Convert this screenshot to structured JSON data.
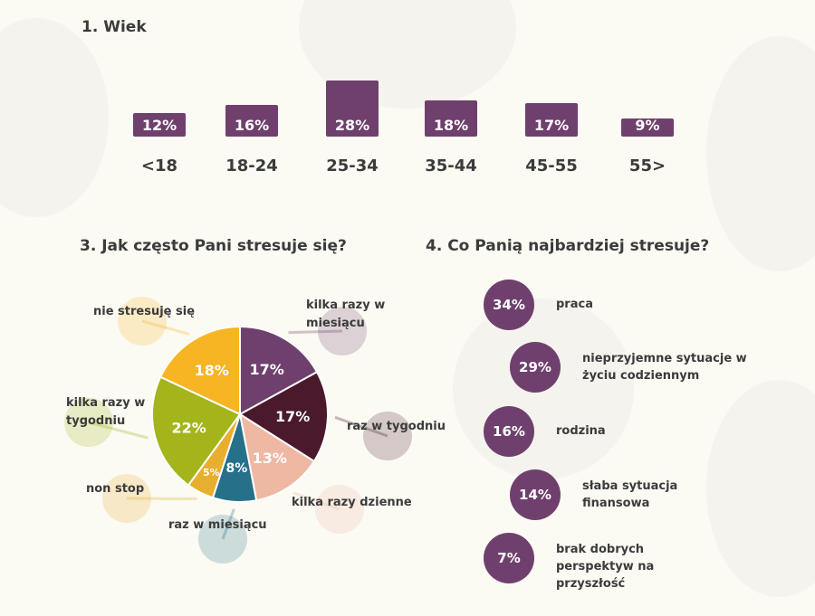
{
  "chart_data": [
    {
      "type": "bar",
      "title": "1. Wiek",
      "categories": [
        "<18",
        "18-24",
        "25-34",
        "35-44",
        "45-55",
        "55>"
      ],
      "values": [
        12,
        16,
        28,
        18,
        17,
        9
      ],
      "value_labels": [
        "12%",
        "16%",
        "28%",
        "18%",
        "17%",
        "9%"
      ],
      "color": "#6f406e"
    },
    {
      "type": "pie",
      "title": "3. Jak często Pani stresuje się?",
      "slices": [
        {
          "label": "kilka razy w miesiącu",
          "value": 17,
          "text": "17%",
          "color": "#6f406e"
        },
        {
          "label": "raz w tygodniu",
          "value": 17,
          "text": "17%",
          "color": "#4a1a2c"
        },
        {
          "label": "kilka razy dzienne",
          "value": 13,
          "text": "13%",
          "color": "#efb8a3"
        },
        {
          "label": "raz w miesiącu",
          "value": 8,
          "text": "8%",
          "color": "#26708a"
        },
        {
          "label": "non stop",
          "value": 5,
          "text": "5%",
          "color": "#e8ae2e"
        },
        {
          "label": "kilka razy w tygodniu",
          "value": 22,
          "text": "22%",
          "color": "#a4b41b"
        },
        {
          "label": "nie stresuję się",
          "value": 18,
          "text": "18%",
          "color": "#f7b523"
        }
      ]
    },
    {
      "type": "table",
      "title": "4. Co Panią najbardziej stresuje?",
      "rows": [
        {
          "value": "34%",
          "label": "praca"
        },
        {
          "value": "29%",
          "label": "nieprzyjemne sytuacje w życiu codziennym"
        },
        {
          "value": "16%",
          "label": "rodzina"
        },
        {
          "value": "14%",
          "label": "słaba sytuacja finansowa"
        },
        {
          "value": "7%",
          "label": "brak dobrych perspektyw na przyszłość"
        }
      ],
      "color": "#6f406e"
    }
  ]
}
